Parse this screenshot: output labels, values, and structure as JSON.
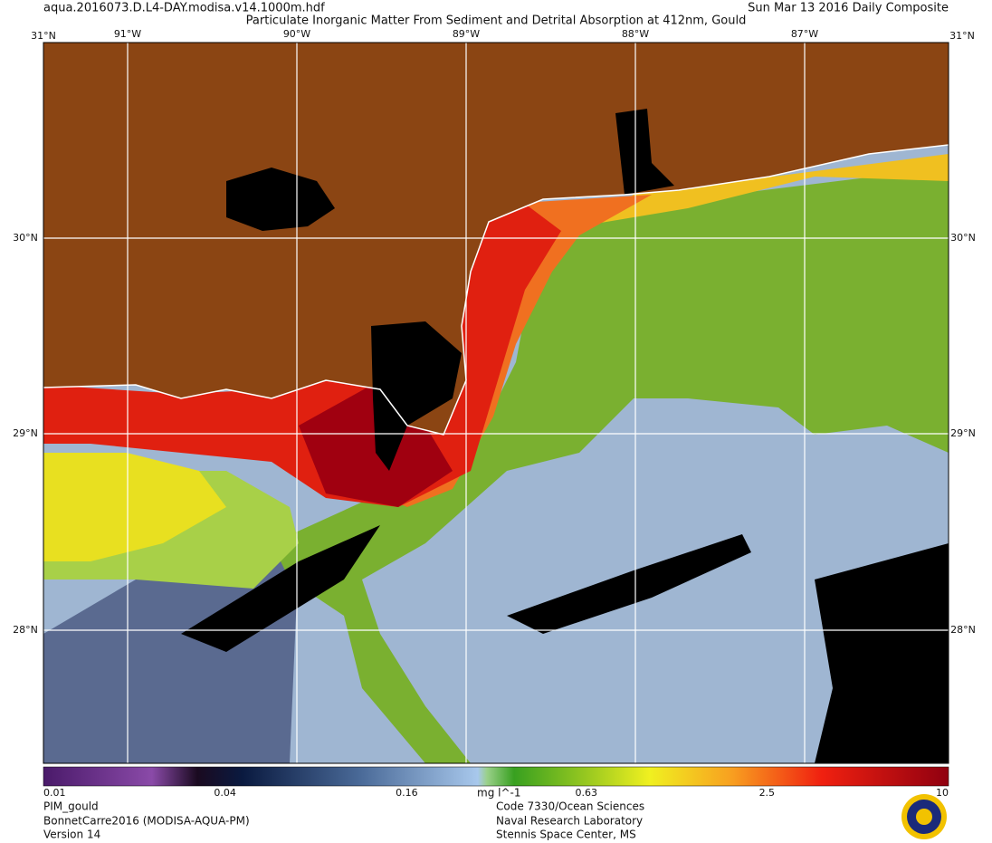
{
  "header": {
    "file": "aqua.2016073.D.L4-DAY.modisa.v14.1000m.hdf",
    "title": "Particulate Inorganic Matter From Sediment and Detrital Absorption at 412nm, Gould",
    "date": "Sun Mar 13 2016 Daily Composite"
  },
  "map": {
    "top_lat": "31°N",
    "longitudes": [
      "91°W",
      "90°W",
      "89°W",
      "88°W",
      "87°W"
    ],
    "latitudes": [
      "30°N",
      "29°N",
      "28°N"
    ]
  },
  "colorbar": {
    "ticks": [
      0.01,
      0.04,
      0.16,
      0.63,
      2.5,
      10
    ],
    "unit": "mg l^-1"
  },
  "footer": {
    "left": [
      "PIM_gould",
      "BonnetCarre2016 (MODISA-AQUA-PM)",
      "Version 14"
    ],
    "center": [
      "Code 7330/Ocean Sciences",
      "Naval Research Laboratory",
      "Stennis Space Center, MS"
    ]
  }
}
